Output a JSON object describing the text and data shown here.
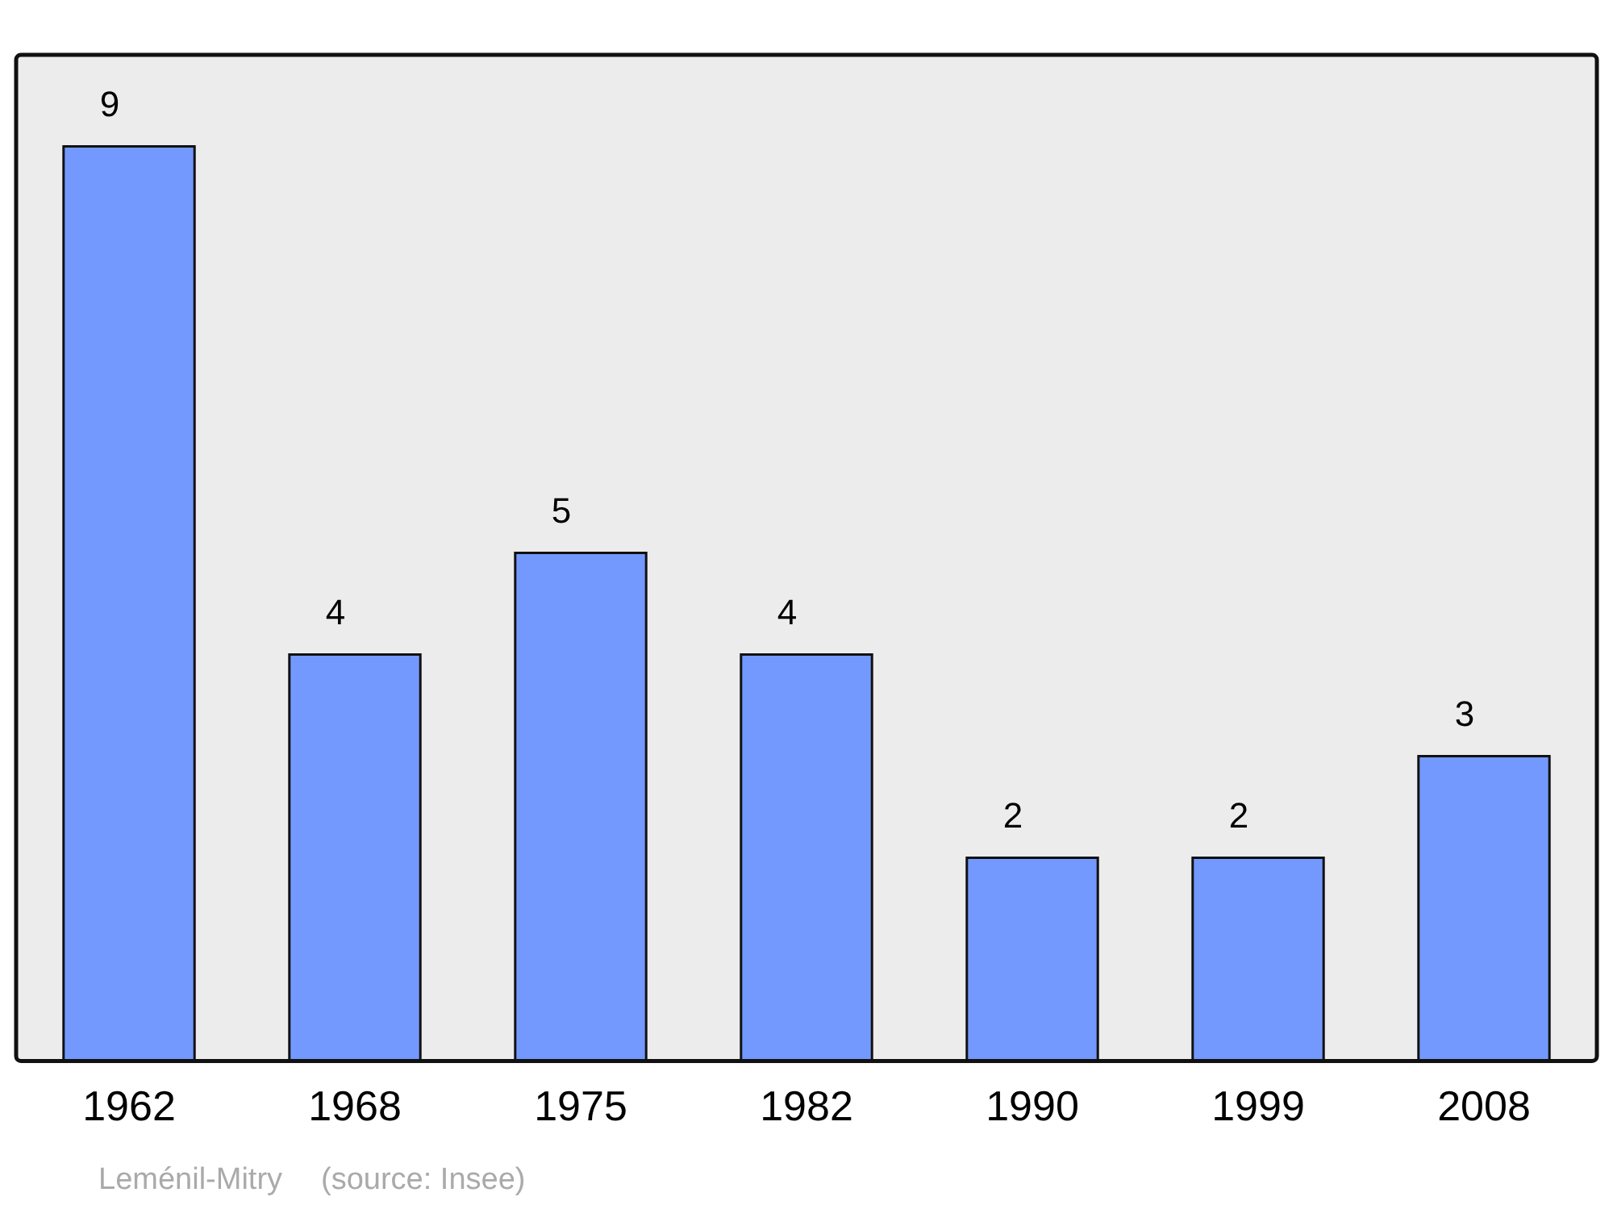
{
  "chart_data": {
    "type": "bar",
    "categories": [
      "1962",
      "1968",
      "1975",
      "1982",
      "1990",
      "1999",
      "2008"
    ],
    "values": [
      9,
      4,
      5,
      4,
      2,
      2,
      3
    ],
    "color": "#7399ff",
    "data_labels": true,
    "annotations": [
      "Leménil-Mitry",
      "(source: Insee)"
    ]
  }
}
